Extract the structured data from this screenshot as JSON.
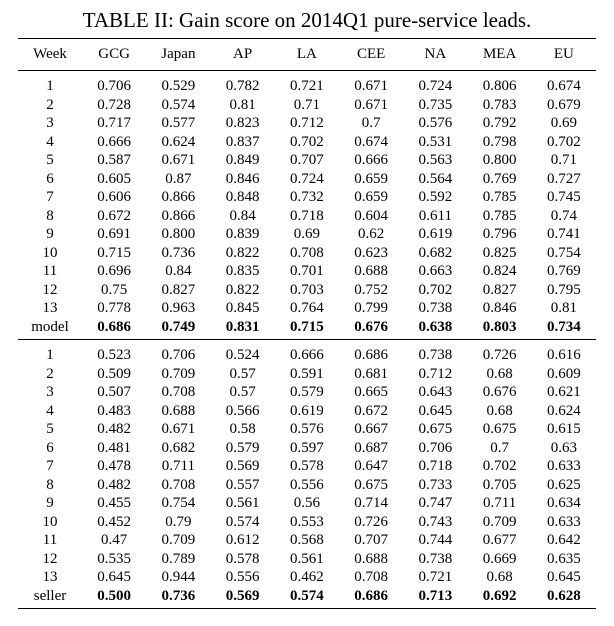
{
  "caption": "TABLE II: Gain score on 2014Q1 pure-service leads.",
  "headers": [
    "Week",
    "GCG",
    "Japan",
    "AP",
    "LA",
    "CEE",
    "NA",
    "MEA",
    "EU"
  ],
  "groups": [
    {
      "rows": [
        [
          "1",
          "0.706",
          "0.529",
          "0.782",
          "0.721",
          "0.671",
          "0.724",
          "0.806",
          "0.674"
        ],
        [
          "2",
          "0.728",
          "0.574",
          "0.81",
          "0.71",
          "0.671",
          "0.735",
          "0.783",
          "0.679"
        ],
        [
          "3",
          "0.717",
          "0.577",
          "0.823",
          "0.712",
          "0.7",
          "0.576",
          "0.792",
          "0.69"
        ],
        [
          "4",
          "0.666",
          "0.624",
          "0.837",
          "0.702",
          "0.674",
          "0.531",
          "0.798",
          "0.702"
        ],
        [
          "5",
          "0.587",
          "0.671",
          "0.849",
          "0.707",
          "0.666",
          "0.563",
          "0.800",
          "0.71"
        ],
        [
          "6",
          "0.605",
          "0.87",
          "0.846",
          "0.724",
          "0.659",
          "0.564",
          "0.769",
          "0.727"
        ],
        [
          "7",
          "0.606",
          "0.866",
          "0.848",
          "0.732",
          "0.659",
          "0.592",
          "0.785",
          "0.745"
        ],
        [
          "8",
          "0.672",
          "0.866",
          "0.84",
          "0.718",
          "0.604",
          "0.611",
          "0.785",
          "0.74"
        ],
        [
          "9",
          "0.691",
          "0.800",
          "0.839",
          "0.69",
          "0.62",
          "0.619",
          "0.796",
          "0.741"
        ],
        [
          "10",
          "0.715",
          "0.736",
          "0.822",
          "0.708",
          "0.623",
          "0.682",
          "0.825",
          "0.754"
        ],
        [
          "11",
          "0.696",
          "0.84",
          "0.835",
          "0.701",
          "0.688",
          "0.663",
          "0.824",
          "0.769"
        ],
        [
          "12",
          "0.75",
          "0.827",
          "0.822",
          "0.703",
          "0.752",
          "0.702",
          "0.827",
          "0.795"
        ],
        [
          "13",
          "0.778",
          "0.963",
          "0.845",
          "0.764",
          "0.799",
          "0.738",
          "0.846",
          "0.81"
        ]
      ],
      "summary": [
        "model",
        "0.686",
        "0.749",
        "0.831",
        "0.715",
        "0.676",
        "0.638",
        "0.803",
        "0.734"
      ]
    },
    {
      "rows": [
        [
          "1",
          "0.523",
          "0.706",
          "0.524",
          "0.666",
          "0.686",
          "0.738",
          "0.726",
          "0.616"
        ],
        [
          "2",
          "0.509",
          "0.709",
          "0.57",
          "0.591",
          "0.681",
          "0.712",
          "0.68",
          "0.609"
        ],
        [
          "3",
          "0.507",
          "0.708",
          "0.57",
          "0.579",
          "0.665",
          "0.643",
          "0.676",
          "0.621"
        ],
        [
          "4",
          "0.483",
          "0.688",
          "0.566",
          "0.619",
          "0.672",
          "0.645",
          "0.68",
          "0.624"
        ],
        [
          "5",
          "0.482",
          "0.671",
          "0.58",
          "0.576",
          "0.667",
          "0.675",
          "0.675",
          "0.615"
        ],
        [
          "6",
          "0.481",
          "0.682",
          "0.579",
          "0.597",
          "0.687",
          "0.706",
          "0.7",
          "0.63"
        ],
        [
          "7",
          "0.478",
          "0.711",
          "0.569",
          "0.578",
          "0.647",
          "0.718",
          "0.702",
          "0.633"
        ],
        [
          "8",
          "0.482",
          "0.708",
          "0.557",
          "0.556",
          "0.675",
          "0.733",
          "0.705",
          "0.625"
        ],
        [
          "9",
          "0.455",
          "0.754",
          "0.561",
          "0.56",
          "0.714",
          "0.747",
          "0.711",
          "0.634"
        ],
        [
          "10",
          "0.452",
          "0.79",
          "0.574",
          "0.553",
          "0.726",
          "0.743",
          "0.709",
          "0.633"
        ],
        [
          "11",
          "0.47",
          "0.709",
          "0.612",
          "0.568",
          "0.707",
          "0.744",
          "0.677",
          "0.642"
        ],
        [
          "12",
          "0.535",
          "0.789",
          "0.578",
          "0.561",
          "0.688",
          "0.738",
          "0.669",
          "0.635"
        ],
        [
          "13",
          "0.645",
          "0.944",
          "0.556",
          "0.462",
          "0.708",
          "0.721",
          "0.68",
          "0.645"
        ]
      ],
      "summary": [
        "seller",
        "0.500",
        "0.736",
        "0.569",
        "0.574",
        "0.686",
        "0.713",
        "0.692",
        "0.628"
      ]
    }
  ]
}
